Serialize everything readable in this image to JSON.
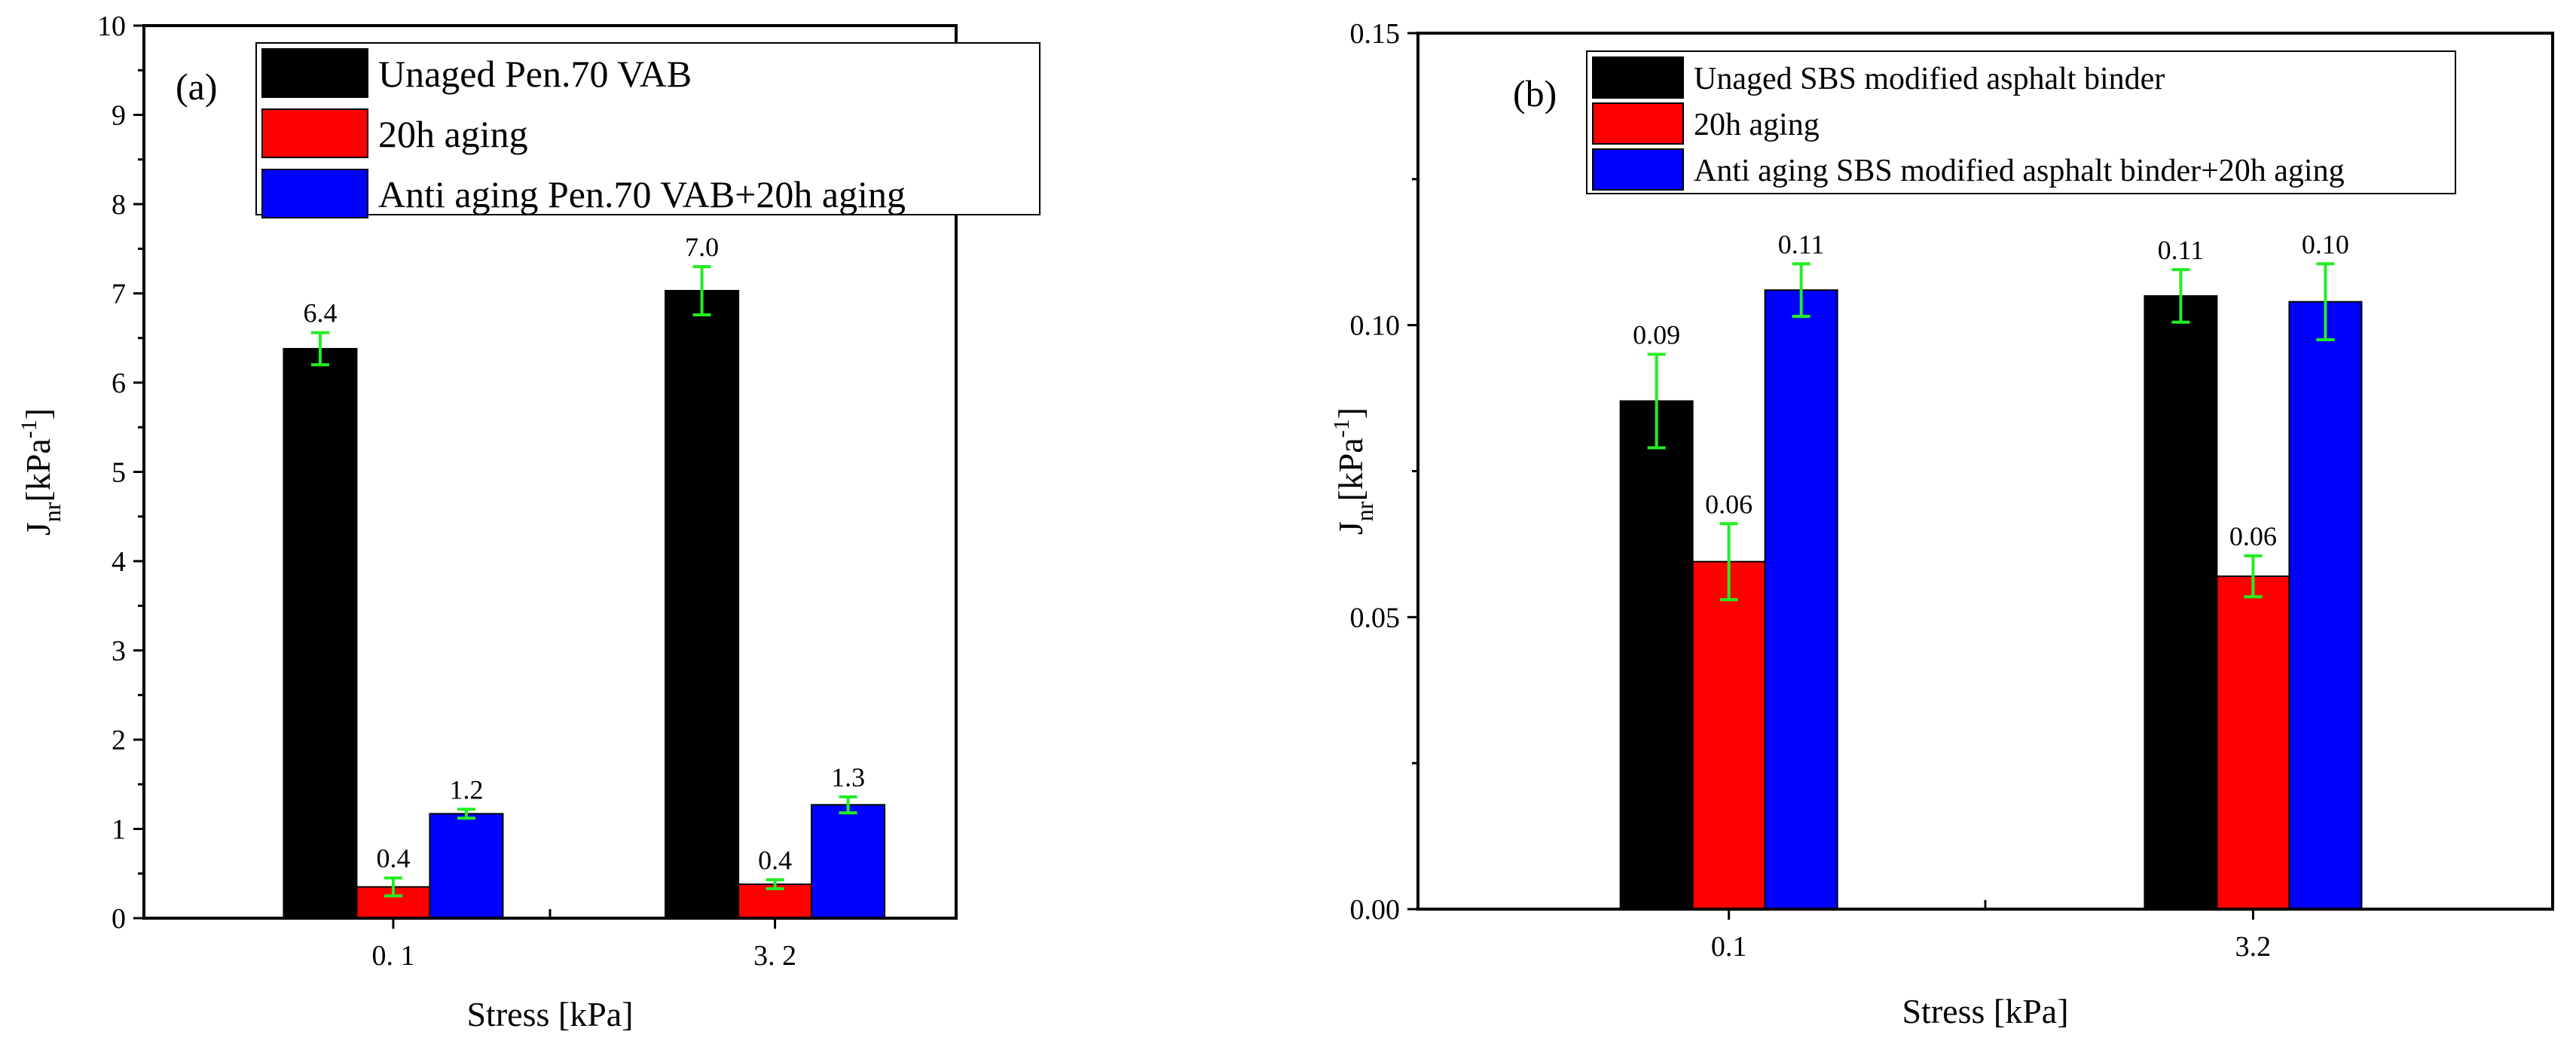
{
  "chart_data": [
    {
      "type": "bar",
      "panel_label": "(a)",
      "xlabel": "Stress [kPa]",
      "ylabel": "J",
      "ylabel_sub": "nr",
      "ylabel_unit_pre": "[kPa",
      "ylabel_unit_sup": "-1",
      "ylabel_unit_post": "]",
      "ylim": [
        0,
        10
      ],
      "yticks": [
        "0",
        "1",
        "2",
        "3",
        "4",
        "5",
        "6",
        "7",
        "8",
        "9",
        "10"
      ],
      "categories": [
        "0. 1",
        "3. 2"
      ],
      "legend_position": "top-right",
      "series": [
        {
          "name": "Unaged Pen.70 VAB",
          "color": "#000000",
          "values": [
            6.38,
            7.03
          ],
          "errors": [
            0.18,
            0.27
          ],
          "labels": [
            "6.4",
            "7.0"
          ]
        },
        {
          "name": "20h aging",
          "color": "#ff0000",
          "values": [
            0.35,
            0.38
          ],
          "errors": [
            0.1,
            0.05
          ],
          "labels": [
            "0.4",
            "0.4"
          ]
        },
        {
          "name": "Anti aging Pen.70 VAB+20h aging",
          "color": "#0000ff",
          "values": [
            1.17,
            1.27
          ],
          "errors": [
            0.05,
            0.09
          ],
          "labels": [
            "1.2",
            "1.3"
          ]
        }
      ],
      "error_bar_color": "#22ee22"
    },
    {
      "type": "bar",
      "panel_label": "(b)",
      "xlabel": "Stress [kPa]",
      "ylabel": "J",
      "ylabel_sub": "nr",
      "ylabel_unit_pre": "[kPa",
      "ylabel_unit_sup": "-1",
      "ylabel_unit_post": "]",
      "ylim": [
        0,
        0.15
      ],
      "yticks": [
        "0.00",
        "0.05",
        "0.10",
        "0.15"
      ],
      "categories": [
        "0.1",
        "3.2"
      ],
      "legend_position": "top-right",
      "series": [
        {
          "name": "Unaged SBS modified asphalt binder",
          "color": "#000000",
          "values": [
            0.087,
            0.105
          ],
          "errors": [
            0.008,
            0.0045
          ],
          "labels": [
            "0.09",
            "0.11"
          ]
        },
        {
          "name": "20h aging",
          "color": "#ff0000",
          "values": [
            0.0595,
            0.057
          ],
          "errors": [
            0.0065,
            0.0035
          ],
          "labels": [
            "0.06",
            "0.06"
          ]
        },
        {
          "name": "Anti aging SBS modified asphalt binder+20h aging",
          "color": "#0000ff",
          "values": [
            0.106,
            0.104
          ],
          "errors": [
            0.0045,
            0.0065
          ],
          "labels": [
            "0.11",
            "0.10"
          ]
        }
      ],
      "error_bar_color": "#22ee22"
    }
  ]
}
